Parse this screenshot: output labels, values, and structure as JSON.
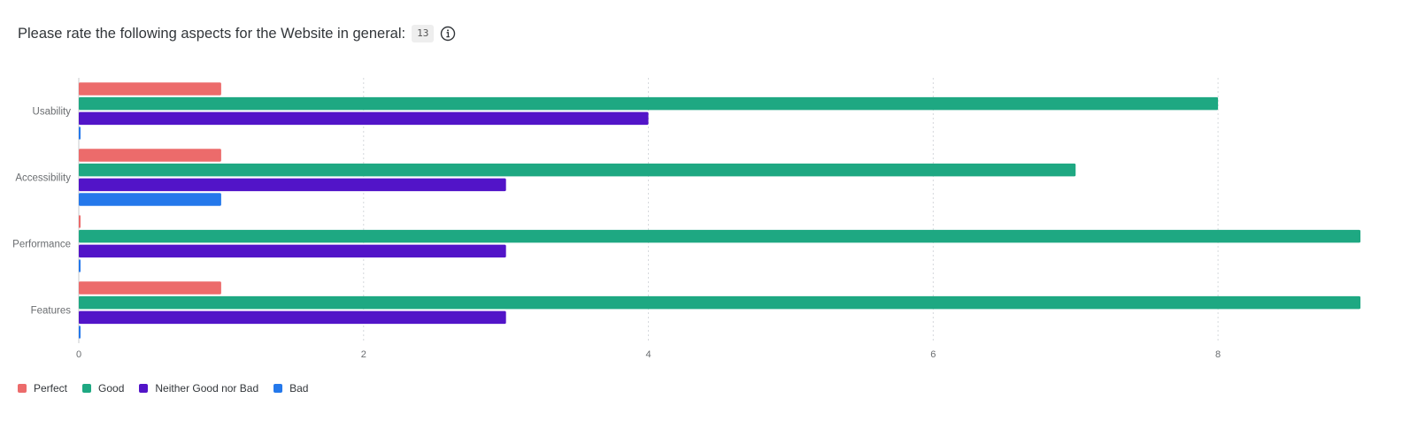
{
  "header": {
    "title": "Please rate the following aspects for the Website in general:",
    "response_count": "13",
    "info_icon": "info-circle-icon"
  },
  "chart_data": {
    "type": "bar",
    "orientation": "horizontal",
    "title": "",
    "xlabel": "",
    "ylabel": "",
    "categories": [
      "Usability",
      "Accessibility",
      "Performance",
      "Features"
    ],
    "series": [
      {
        "name": "Perfect",
        "color": "#ec6b6b",
        "values": [
          1,
          1,
          0,
          1
        ]
      },
      {
        "name": "Good",
        "color": "#1ea882",
        "values": [
          8,
          7,
          9,
          9
        ]
      },
      {
        "name": "Neither Good nor Bad",
        "color": "#5214c8",
        "values": [
          4,
          3,
          3,
          3
        ]
      },
      {
        "name": "Bad",
        "color": "#2478eb",
        "values": [
          0,
          1,
          0,
          0
        ]
      }
    ],
    "xlim": [
      0,
      9
    ],
    "xticks": [
      "0",
      "2",
      "4",
      "6",
      "8"
    ],
    "grid": "vertical-dotted",
    "legend_position": "bottom-left"
  }
}
